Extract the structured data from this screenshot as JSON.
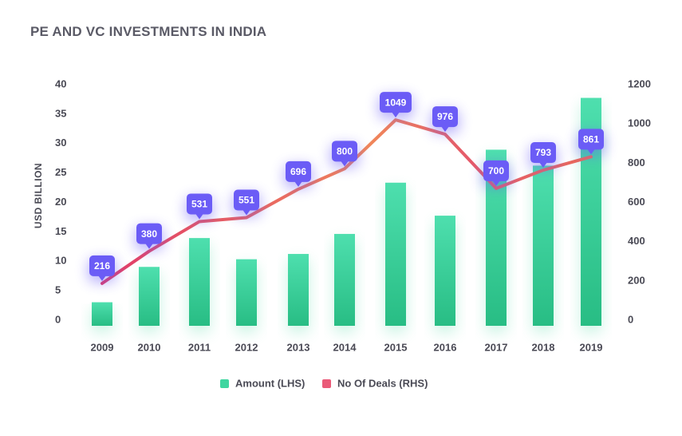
{
  "title": "PE AND VC INVESTMENTS IN INDIA",
  "chart_data": {
    "type": "bar",
    "title": "PE AND VC INVESTMENTS IN INDIA",
    "categories": [
      "2009",
      "2010",
      "2011",
      "2012",
      "2013",
      "2014",
      "2015",
      "2016",
      "2017",
      "2018",
      "2019"
    ],
    "series": [
      {
        "name": "Amount (LHS)",
        "type": "bar",
        "axis": "left",
        "values": [
          4,
          10,
          14.9,
          11.3,
          12.2,
          15.6,
          24.3,
          18.7,
          29.9,
          27.2,
          38.7
        ]
      },
      {
        "name": "No Of Deals (RHS)",
        "type": "line",
        "axis": "right",
        "values": [
          216,
          380,
          531,
          551,
          696,
          800,
          1049,
          976,
          700,
          793,
          861
        ],
        "data_labels": [
          "216",
          "380",
          "531",
          "551",
          "696",
          "800",
          "1049",
          "976",
          "700",
          "793",
          "861"
        ]
      }
    ],
    "ylabel": "USD BILLION",
    "ylim": [
      0,
      40
    ],
    "yticks": [
      "0",
      "5",
      "10",
      "15",
      "20",
      "25",
      "30",
      "35",
      "40"
    ],
    "y2lim": [
      0,
      1200
    ],
    "y2ticks": [
      "0",
      "200",
      "400",
      "600",
      "800",
      "1000",
      "1200"
    ],
    "grid": false,
    "legend_position": "bottom",
    "colors": {
      "bar_top": "#4edfae",
      "bar_bottom": "#2bbf86",
      "line_start": "#e84a6e",
      "line_end": "#f08a4a",
      "callout": "#6b5cf6"
    }
  }
}
